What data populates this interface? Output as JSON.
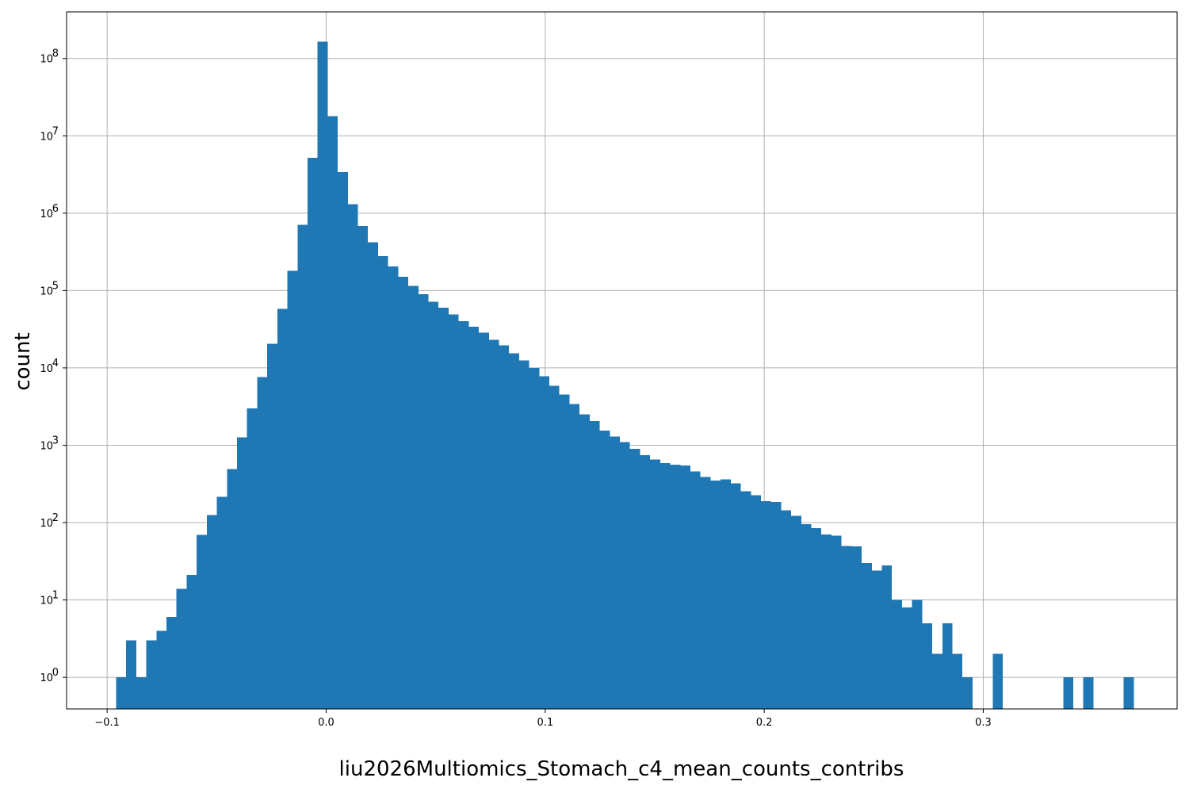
{
  "chart_data": {
    "type": "bar",
    "xlabel": "liu2026Multiomics_Stomach_c4_mean_counts_contribs",
    "ylabel": "count",
    "yscale": "log",
    "grid": true,
    "xlim": [
      -0.1185,
      0.3885
    ],
    "ylim": [
      0.39,
      400000000
    ],
    "x_ticks": [
      -0.1,
      0.0,
      0.1,
      0.2,
      0.3
    ],
    "x_tick_labels": [
      "−0.1",
      "0.0",
      "0.1",
      "0.2",
      "0.3"
    ],
    "y_ticks": [
      1,
      10,
      100,
      1000,
      10000,
      100000,
      1000000,
      10000000,
      100000000
    ],
    "y_tick_labels": [
      {
        "base": "10",
        "exp": "0"
      },
      {
        "base": "10",
        "exp": "1"
      },
      {
        "base": "10",
        "exp": "2"
      },
      {
        "base": "10",
        "exp": "3"
      },
      {
        "base": "10",
        "exp": "4"
      },
      {
        "base": "10",
        "exp": "5"
      },
      {
        "base": "10",
        "exp": "6"
      },
      {
        "base": "10",
        "exp": "7"
      },
      {
        "base": "10",
        "exp": "8"
      }
    ],
    "bin_start": -0.0959,
    "bin_width": 0.0046,
    "values": [
      1,
      3,
      1,
      3,
      4,
      6,
      14,
      21,
      69,
      125,
      215,
      490,
      1270,
      3000,
      7600,
      20500,
      58000,
      180000,
      710000,
      5200000,
      165000000,
      18000000,
      3400000,
      1300000,
      680000,
      420000,
      280000,
      205000,
      150000,
      115000,
      90000,
      72000,
      60000,
      49000,
      40000,
      34000,
      28500,
      23000,
      19500,
      15500,
      12500,
      10000,
      7800,
      5900,
      4500,
      3400,
      2500,
      2050,
      1550,
      1300,
      1100,
      900,
      740,
      650,
      590,
      560,
      550,
      460,
      390,
      350,
      360,
      320,
      255,
      225,
      190,
      185,
      145,
      122,
      95,
      85,
      70,
      68,
      50,
      49,
      30,
      24,
      28,
      10,
      8,
      10,
      5,
      2,
      5,
      2,
      1,
      0,
      0,
      2,
      0,
      0,
      0,
      0,
      0,
      0,
      1,
      0,
      1,
      0,
      0,
      0,
      1
    ]
  }
}
